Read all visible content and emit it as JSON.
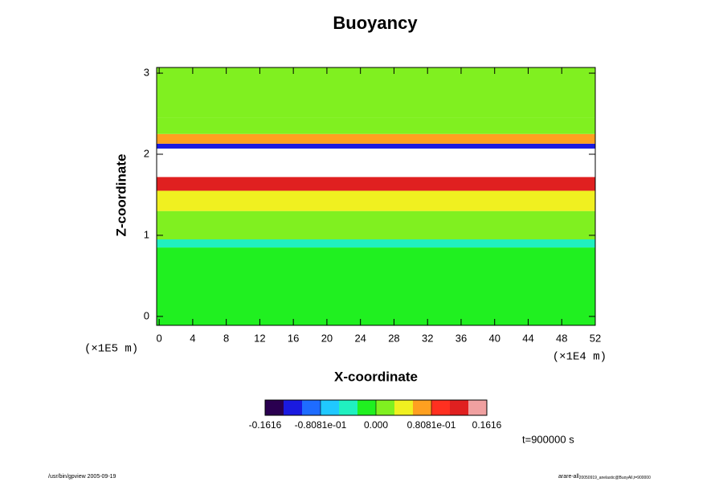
{
  "chart_data": {
    "type": "heatmap",
    "title": "Buoyancy",
    "xlabel": "X-coordinate",
    "ylabel": "Z-coordinate",
    "xunit": "(×1E4 m)",
    "yunit": "(×1E5 m)",
    "xlim": [
      -0.3,
      52
    ],
    "xticks": [
      0,
      4,
      8,
      12,
      16,
      20,
      24,
      28,
      32,
      36,
      40,
      44,
      48,
      52
    ],
    "ylim": [
      -0.11,
      3.07
    ],
    "yticks": [
      0,
      1,
      2,
      3
    ],
    "z_edges": [
      -0.11,
      0.85,
      0.95,
      1.3,
      1.55,
      1.72,
      2.07,
      2.13,
      2.25,
      2.45,
      3.07
    ],
    "values": [
      -0.01,
      -0.04,
      0.02,
      0.03,
      0.11,
      null,
      -0.12,
      0.08,
      0.0,
      0.01
    ],
    "colorbar": {
      "lim": [
        -0.1616,
        0.1616
      ],
      "colors": [
        "#2a0050",
        "#1a1ae0",
        "#1e6cff",
        "#20c8ff",
        "#20f0c0",
        "#20f020",
        "#80f020",
        "#f0f020",
        "#ffa020",
        "#ff3020",
        "#e02020",
        "#f0a0a0"
      ],
      "ticks": [
        {
          "value": -0.1616,
          "label": "-0.1616"
        },
        {
          "value": -0.08081,
          "label": "-0.8081e-01"
        },
        {
          "value": 0,
          "label": "0.000"
        },
        {
          "value": 0.08081,
          "label": "0.8081e-01"
        },
        {
          "value": 0.1616,
          "label": "0.1616"
        }
      ]
    },
    "time_label": "t=900000 s",
    "footer_left": "/usr/bin/gpview 2005-09-19",
    "footer_right": "arare-all",
    "footer_right_sub": "20050919_anelastic@BuoyAll,t=900000"
  }
}
